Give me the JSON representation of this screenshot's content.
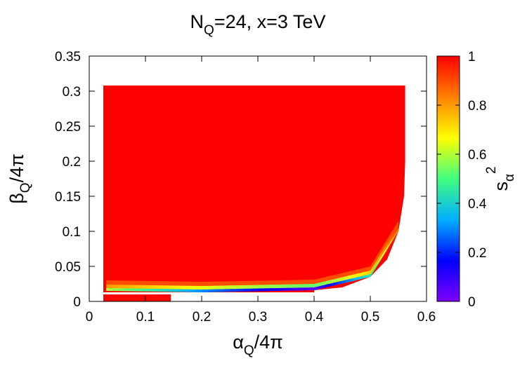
{
  "chart_data": {
    "type": "heatmap",
    "title": {
      "main": "N",
      "sub": "Q",
      "rest": "=24, x=3 TeV"
    },
    "xlabel": {
      "main": "α",
      "sub": "Q",
      "rest": "/4π"
    },
    "ylabel": {
      "main": "β",
      "sub": "Q",
      "rest": "/4π"
    },
    "zlabel": {
      "main": "s",
      "sub": "α",
      "sup": "2"
    },
    "xlim": [
      0,
      0.6
    ],
    "ylim": [
      0,
      0.35
    ],
    "zlim": [
      0,
      1
    ],
    "xticks": [
      "0",
      "0.1",
      "0.2",
      "0.3",
      "0.4",
      "0.5",
      "0.6"
    ],
    "yticks": [
      "0",
      "0.05",
      "0.1",
      "0.15",
      "0.2",
      "0.25",
      "0.3",
      "0.35"
    ],
    "cbticks": [
      "0",
      "0.2",
      "0.4",
      "0.6",
      "0.8",
      "1"
    ],
    "colormap": [
      "#7f00ff",
      "#0000ff",
      "#00b0ff",
      "#40ff80",
      "#ffff00",
      "#ff8000",
      "#ff0000"
    ],
    "region": {
      "alpha_min": 0.025,
      "alpha_max": 0.562,
      "beta_max": 0.308,
      "boundary": [
        {
          "alpha": 0.4,
          "beta": 0.016
        },
        {
          "alpha": 0.45,
          "beta": 0.02
        },
        {
          "alpha": 0.5,
          "beta": 0.035
        },
        {
          "alpha": 0.53,
          "beta": 0.06
        },
        {
          "alpha": 0.55,
          "beta": 0.1
        },
        {
          "alpha": 0.56,
          "beta": 0.15
        },
        {
          "alpha": 0.562,
          "beta": 0.2
        },
        {
          "alpha": 0.562,
          "beta": 0.308
        }
      ],
      "lower_band": {
        "alpha_max": 0.145,
        "beta_max": 0.01
      },
      "gap_beta": 0.013,
      "transition_band": [
        {
          "alpha": 0.03,
          "beta_min": 0.015,
          "s2": 0.6
        },
        {
          "alpha": 0.2,
          "beta_min": 0.013,
          "s2": 0.3
        },
        {
          "alpha": 0.4,
          "beta_min": 0.016,
          "s2": 0.05
        },
        {
          "alpha": 0.5,
          "beta_min": 0.035,
          "s2": 0.45
        },
        {
          "alpha": 0.55,
          "beta_min": 0.1,
          "s2": 0.85
        }
      ]
    }
  }
}
